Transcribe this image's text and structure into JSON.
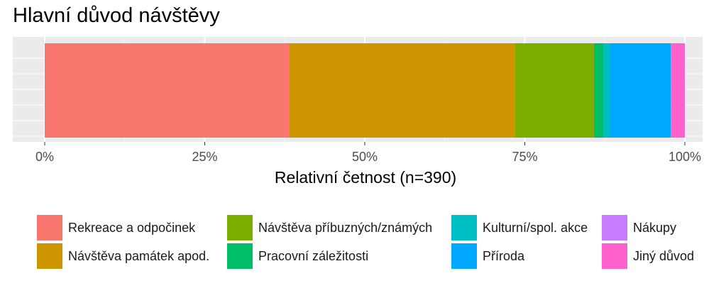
{
  "chart_data": {
    "type": "bar",
    "orientation": "horizontal-stacked",
    "title": "Hlavní důvod návštěvy",
    "xlabel": "Relativní četnost (n=390)",
    "ylabel": "",
    "xlim": [
      0,
      1
    ],
    "x_ticks": [
      "0%",
      "25%",
      "50%",
      "75%",
      "100%"
    ],
    "grid": true,
    "legend_position": "bottom",
    "series": [
      {
        "name": "Rekreace a odpočinek",
        "value": 0.382,
        "color": "#F8766D"
      },
      {
        "name": "Návštěva památek apod.",
        "value": 0.353,
        "color": "#CD9600"
      },
      {
        "name": "Návštěva příbuzných/známých",
        "value": 0.123,
        "color": "#7CAE00"
      },
      {
        "name": "Pracovní záležitosti",
        "value": 0.015,
        "color": "#00BE67"
      },
      {
        "name": "Kulturní/spol. akce",
        "value": 0.01,
        "color": "#00BFC4"
      },
      {
        "name": "Příroda",
        "value": 0.095,
        "color": "#00A9FF"
      },
      {
        "name": "Nákupy",
        "value": 0.0,
        "color": "#C77CFF"
      },
      {
        "name": "Jiný důvod",
        "value": 0.022,
        "color": "#FF61CC"
      }
    ]
  }
}
